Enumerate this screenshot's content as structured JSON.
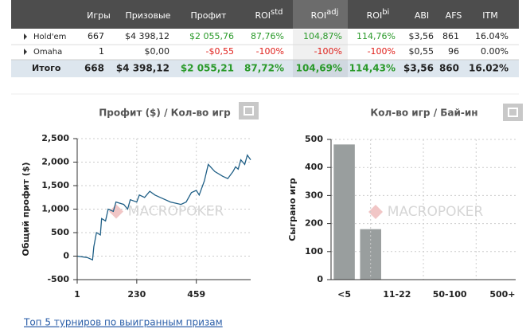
{
  "table": {
    "columns": [
      "Игры",
      "Призовые",
      "Профит",
      {
        "text": "ROI",
        "sup": "std"
      },
      {
        "text": "ROI",
        "sup": "adj"
      },
      {
        "text": "ROI",
        "sup": "bi"
      },
      "ABI",
      "AFS",
      "ITM"
    ],
    "rows": [
      {
        "name": "Hold'em",
        "cells": [
          "667",
          "$4 398,12",
          "$2 055,76",
          "87,76%",
          "104,87%",
          "114,76%",
          "$3,56",
          "861",
          "16.04%"
        ]
      },
      {
        "name": "Omaha",
        "cells": [
          "1",
          "$0,00",
          "-$0,55",
          "-100%",
          "-100%",
          "-100%",
          "$0,55",
          "96",
          "0.00%"
        ]
      },
      {
        "name": "Итого",
        "cells": [
          "668",
          "$4 398,12",
          "$2 055,21",
          "87,72%",
          "104,69%",
          "114,43%",
          "$3,56",
          "860",
          "16.02%"
        ]
      }
    ]
  },
  "chart_data": [
    {
      "type": "line",
      "title": "Профит ($) / Кол-во игр",
      "y_label": "Общий профит ($)",
      "watermark": "MACROPOKER",
      "color": "#1f5f86",
      "x": [
        1,
        40,
        60,
        65,
        75,
        90,
        95,
        110,
        120,
        140,
        150,
        180,
        195,
        205,
        230,
        240,
        260,
        280,
        300,
        320,
        360,
        400,
        420,
        440,
        459,
        470,
        490,
        505,
        530,
        560,
        580,
        600,
        610,
        620,
        630,
        645,
        655,
        668
      ],
      "values": [
        0,
        -30,
        -80,
        200,
        500,
        450,
        800,
        750,
        1000,
        950,
        1150,
        1100,
        1000,
        1200,
        1150,
        1300,
        1250,
        1380,
        1300,
        1250,
        1150,
        1100,
        1150,
        1350,
        1400,
        1300,
        1600,
        1950,
        1800,
        1700,
        1650,
        1800,
        1900,
        1850,
        2050,
        1950,
        2150,
        2050
      ],
      "xlim": [
        1,
        668
      ],
      "xticks": [
        1,
        230,
        459
      ],
      "ylim": [
        -500,
        2500
      ],
      "yticks": [
        -500,
        0,
        500,
        {
          "value": 1000,
          "label": "1,000"
        },
        {
          "value": 1500,
          "label": "1,500"
        },
        {
          "value": 2000,
          "label": "2,000"
        },
        {
          "value": 2500,
          "label": "2,500"
        }
      ],
      "grid": true
    },
    {
      "type": "bar",
      "title": "Кол-во игр / Бай-ин",
      "y_label": "Сыграно игр",
      "watermark": "MACROPOKER",
      "color": "#999e9e",
      "categories": [
        "<5",
        null,
        "11-22",
        null,
        "50-100",
        null,
        "500+"
      ],
      "values": [
        482,
        180,
        0,
        0,
        0,
        0,
        0
      ],
      "ylim": [
        0,
        500
      ],
      "yticks": [
        0,
        100,
        200,
        300,
        400,
        500
      ],
      "grid": true
    }
  ],
  "link": "Топ 5 турниров по выигранным призам"
}
